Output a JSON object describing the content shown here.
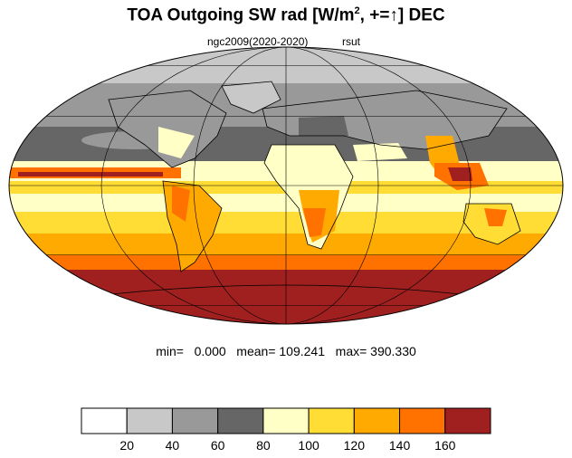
{
  "title": {
    "main": "TOA Outgoing SW rad [W/m",
    "sup": "2",
    "suffix": ", +=↑] DEC"
  },
  "subtitle": {
    "left": "ngc2009(2020-2020)",
    "right": "rsut"
  },
  "stats": {
    "line": "min=   0.000   mean= 109.241   max= 390.330"
  },
  "colorbar": {
    "colors": [
      "#ffffff",
      "#c8c8c8",
      "#999999",
      "#666666",
      "#ffffc6",
      "#ffdd35",
      "#ffaa00",
      "#ff7200",
      "#a02020"
    ],
    "tick_labels": [
      "20",
      "40",
      "60",
      "80",
      "100",
      "120",
      "140",
      "160"
    ]
  },
  "map": {
    "projection": "mollweide",
    "gridlines": true,
    "coastlines": true,
    "colors": {
      "ocean_dark": "#666666",
      "ocean_mid": "#999999",
      "ocean_light": "#c8c8c8",
      "pale": "#ffffc6",
      "yellow": "#ffdd35",
      "orange": "#ffaa00",
      "dark_orange": "#ff7200",
      "red": "#a02020",
      "coast": "#000000",
      "grid": "#000000"
    }
  }
}
